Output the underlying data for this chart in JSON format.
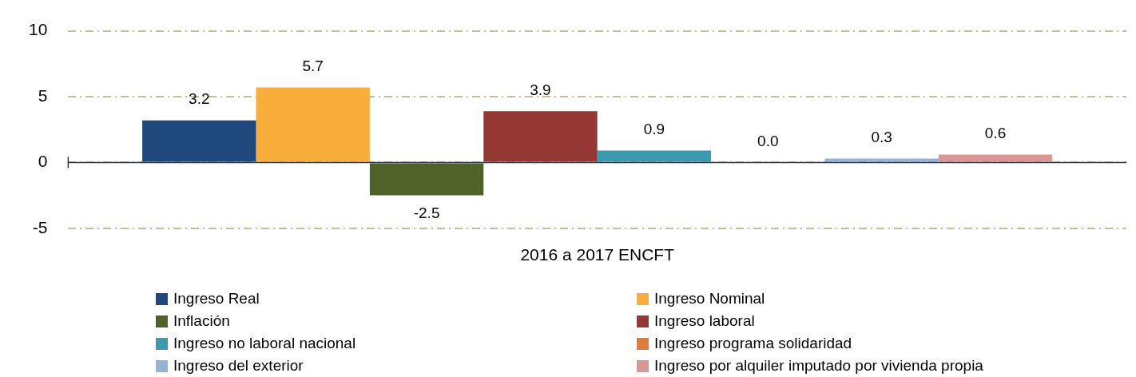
{
  "chart_data": {
    "type": "bar",
    "categories": [
      "2016 a 2017 ENCFT"
    ],
    "series": [
      {
        "name": "Ingreso Real",
        "color": "#1f497d",
        "values": [
          3.2
        ]
      },
      {
        "name": "Ingreso Nominal",
        "color": "#f9ae3b",
        "values": [
          5.7
        ]
      },
      {
        "name": "Inflación",
        "color": "#4f6228",
        "values": [
          -2.5
        ]
      },
      {
        "name": "Ingreso laboral",
        "color": "#953735",
        "values": [
          3.9
        ]
      },
      {
        "name": "Ingreso no laboral nacional",
        "color": "#3c9ab0",
        "values": [
          0.9
        ]
      },
      {
        "name": "Ingreso programa solidaridad",
        "color": "#e07b39",
        "values": [
          0.0
        ]
      },
      {
        "name": "Ingreso del exterior",
        "color": "#95b3d7",
        "values": [
          0.3
        ]
      },
      {
        "name": "Ingreso por alquiler imputado por vivienda propia",
        "color": "#d99694",
        "values": [
          0.6
        ]
      }
    ],
    "value_labels": [
      "3.2",
      "5.7",
      "-2.5",
      "3.9",
      "0.9",
      "0.0",
      "0.3",
      "0.6"
    ],
    "ref_lines": [
      {
        "axis": "y",
        "value": 0,
        "color": "#1f3864",
        "line_style": "solid"
      }
    ],
    "ylim": [
      -5,
      10
    ],
    "yticks": [
      -5,
      0,
      5,
      10
    ],
    "grid": "y",
    "legend": "bottom"
  }
}
